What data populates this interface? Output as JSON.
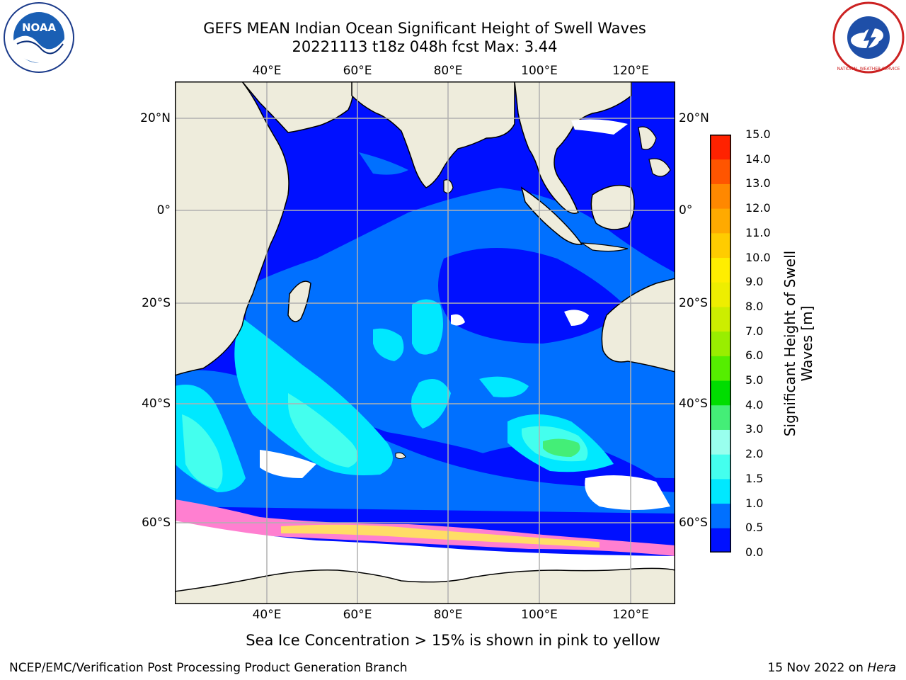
{
  "title": {
    "line1": "GEFS MEAN Indian Ocean Significant Height of Swell Waves",
    "line2": "20221113 t18z 048h fcst   Max: 3.44"
  },
  "map": {
    "lon_ticks": [
      "40°E",
      "60°E",
      "80°E",
      "100°E",
      "120°E"
    ],
    "lat_ticks": [
      "20°N",
      "0°",
      "20°S",
      "40°S",
      "60°S"
    ]
  },
  "colorbar": {
    "title": "Significant Height of Swell Waves [m]",
    "labels": [
      "15.0",
      "14.0",
      "13.0",
      "12.0",
      "11.0",
      "10.0",
      "9.0",
      "8.0",
      "7.0",
      "6.0",
      "5.0",
      "4.0",
      "3.0",
      "2.0",
      "1.5",
      "1.0",
      "0.5",
      "0.0"
    ],
    "colors_bottom_to_top": [
      "#0010ff",
      "#0070ff",
      "#00e8ff",
      "#44ffee",
      "#99ffee",
      "#44ee77",
      "#00dd00",
      "#55ee00",
      "#99ee00",
      "#ccee00",
      "#eeee00",
      "#ffee00",
      "#ffcc00",
      "#ffaa00",
      "#ff8800",
      "#ff5500",
      "#ff2200"
    ]
  },
  "colors": {
    "ocean_0": "#0010ff",
    "ocean_05": "#0070ff",
    "ocean_10": "#00e8ff",
    "ocean_15": "#44ffee",
    "ocean_20": "#99ffee",
    "ocean_30": "#44ee77",
    "land": "#eeecdc",
    "sea_ice": "#ff7fd0",
    "ice_yellow": "#ffdd66"
  },
  "footer": {
    "caption": "Sea Ice Concentration > 15% is shown in pink to yellow",
    "left": "NCEP/EMC/Verification Post Processing Product Generation Branch",
    "right_date": "15 Nov 2022 on ",
    "right_host": "Hera"
  },
  "logos": {
    "noaa_text": "NOAA",
    "nws_text": "NATIONAL WEATHER SERVICE"
  }
}
